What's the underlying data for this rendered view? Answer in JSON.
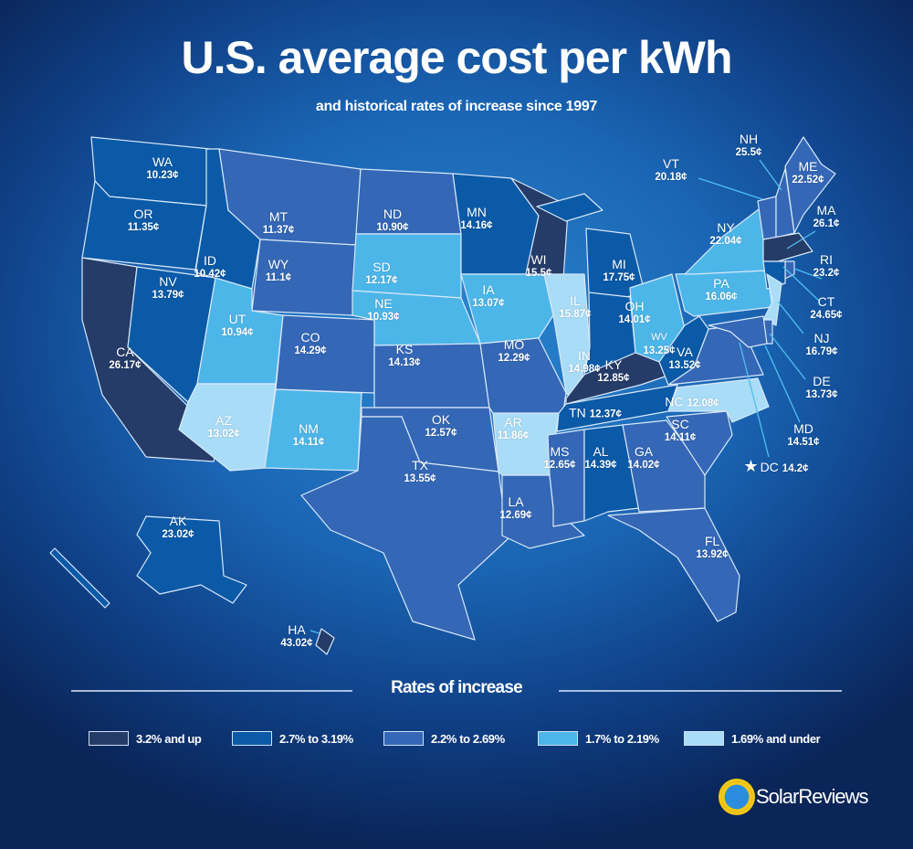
{
  "title": "U.S. average cost per kWh",
  "subtitle": "and historical rates of increase since 1997",
  "legend": {
    "title": "Rates of increase",
    "tiers": [
      {
        "label": "3.2% and up",
        "color": "#253b68"
      },
      {
        "label": "2.7% to 3.19%",
        "color": "#0b5aa7"
      },
      {
        "label": "2.2% to 2.69%",
        "color": "#3467b6"
      },
      {
        "label": "1.7% to 2.19%",
        "color": "#4db6e9"
      },
      {
        "label": "1.69% and under",
        "color": "#a9dcf7"
      }
    ]
  },
  "states": [
    {
      "abbr": "WA",
      "value": "10.23¢",
      "tier": 1
    },
    {
      "abbr": "OR",
      "value": "11.35¢",
      "tier": 1
    },
    {
      "abbr": "CA",
      "value": "26.17¢",
      "tier": 0
    },
    {
      "abbr": "NV",
      "value": "13.79¢",
      "tier": 1
    },
    {
      "abbr": "ID",
      "value": "10.42¢",
      "tier": 1
    },
    {
      "abbr": "MT",
      "value": "11.37¢",
      "tier": 2
    },
    {
      "abbr": "WY",
      "value": "11.1¢",
      "tier": 2
    },
    {
      "abbr": "UT",
      "value": "10.94¢",
      "tier": 3
    },
    {
      "abbr": "AZ",
      "value": "13.02¢",
      "tier": 4
    },
    {
      "abbr": "CO",
      "value": "14.29¢",
      "tier": 2
    },
    {
      "abbr": "NM",
      "value": "14.11¢",
      "tier": 3
    },
    {
      "abbr": "ND",
      "value": "10.90¢",
      "tier": 2
    },
    {
      "abbr": "SD",
      "value": "12.17¢",
      "tier": 3
    },
    {
      "abbr": "NE",
      "value": "10.93¢",
      "tier": 3
    },
    {
      "abbr": "KS",
      "value": "14.13¢",
      "tier": 2
    },
    {
      "abbr": "OK",
      "value": "12.57¢",
      "tier": 2
    },
    {
      "abbr": "TX",
      "value": "13.55¢",
      "tier": 2
    },
    {
      "abbr": "MN",
      "value": "14.16¢",
      "tier": 1
    },
    {
      "abbr": "IA",
      "value": "13.07¢",
      "tier": 3
    },
    {
      "abbr": "MO",
      "value": "12.29¢",
      "tier": 2
    },
    {
      "abbr": "AR",
      "value": "11.86¢",
      "tier": 4
    },
    {
      "abbr": "LA",
      "value": "12.69¢",
      "tier": 2
    },
    {
      "abbr": "WI",
      "value": "15.5¢",
      "tier": 0
    },
    {
      "abbr": "IL",
      "value": "15.87¢",
      "tier": 4
    },
    {
      "abbr": "MI",
      "value": "17.75¢",
      "tier": 1
    },
    {
      "abbr": "IN",
      "value": "14.98¢",
      "tier": 1
    },
    {
      "abbr": "OH",
      "value": "14.01¢",
      "tier": 3
    },
    {
      "abbr": "KY",
      "value": "12.85¢",
      "tier": 0
    },
    {
      "abbr": "TN",
      "value": "12.37¢",
      "tier": 1
    },
    {
      "abbr": "MS",
      "value": "12.65¢",
      "tier": 2
    },
    {
      "abbr": "AL",
      "value": "14.39¢",
      "tier": 1
    },
    {
      "abbr": "GA",
      "value": "14.02¢",
      "tier": 2
    },
    {
      "abbr": "FL",
      "value": "13.92¢",
      "tier": 2
    },
    {
      "abbr": "SC",
      "value": "14.11¢",
      "tier": 2
    },
    {
      "abbr": "NC",
      "value": "12.08¢",
      "tier": 4
    },
    {
      "abbr": "VA",
      "value": "13.52¢",
      "tier": 2
    },
    {
      "abbr": "WV",
      "value": "13.25¢",
      "tier": 1
    },
    {
      "abbr": "PA",
      "value": "16.06¢",
      "tier": 3
    },
    {
      "abbr": "NY",
      "value": "22.04¢",
      "tier": 3
    },
    {
      "abbr": "VT",
      "value": "20.18¢",
      "tier": 2
    },
    {
      "abbr": "NH",
      "value": "25.5¢",
      "tier": 2
    },
    {
      "abbr": "ME",
      "value": "22.52¢",
      "tier": 2
    },
    {
      "abbr": "MA",
      "value": "26.1¢",
      "tier": 0
    },
    {
      "abbr": "RI",
      "value": "23.2¢",
      "tier": 2
    },
    {
      "abbr": "CT",
      "value": "24.65¢",
      "tier": 1
    },
    {
      "abbr": "NJ",
      "value": "16.79¢",
      "tier": 4
    },
    {
      "abbr": "DE",
      "value": "13.73¢",
      "tier": 2
    },
    {
      "abbr": "MD",
      "value": "14.51¢",
      "tier": 2
    },
    {
      "abbr": "DC",
      "value": "14.2¢",
      "tier": null
    },
    {
      "abbr": "AK",
      "value": "23.02¢",
      "tier": 1
    },
    {
      "abbr": "HA",
      "value": "43.02¢",
      "tier": 0
    }
  ],
  "brand": "SolarReviews"
}
